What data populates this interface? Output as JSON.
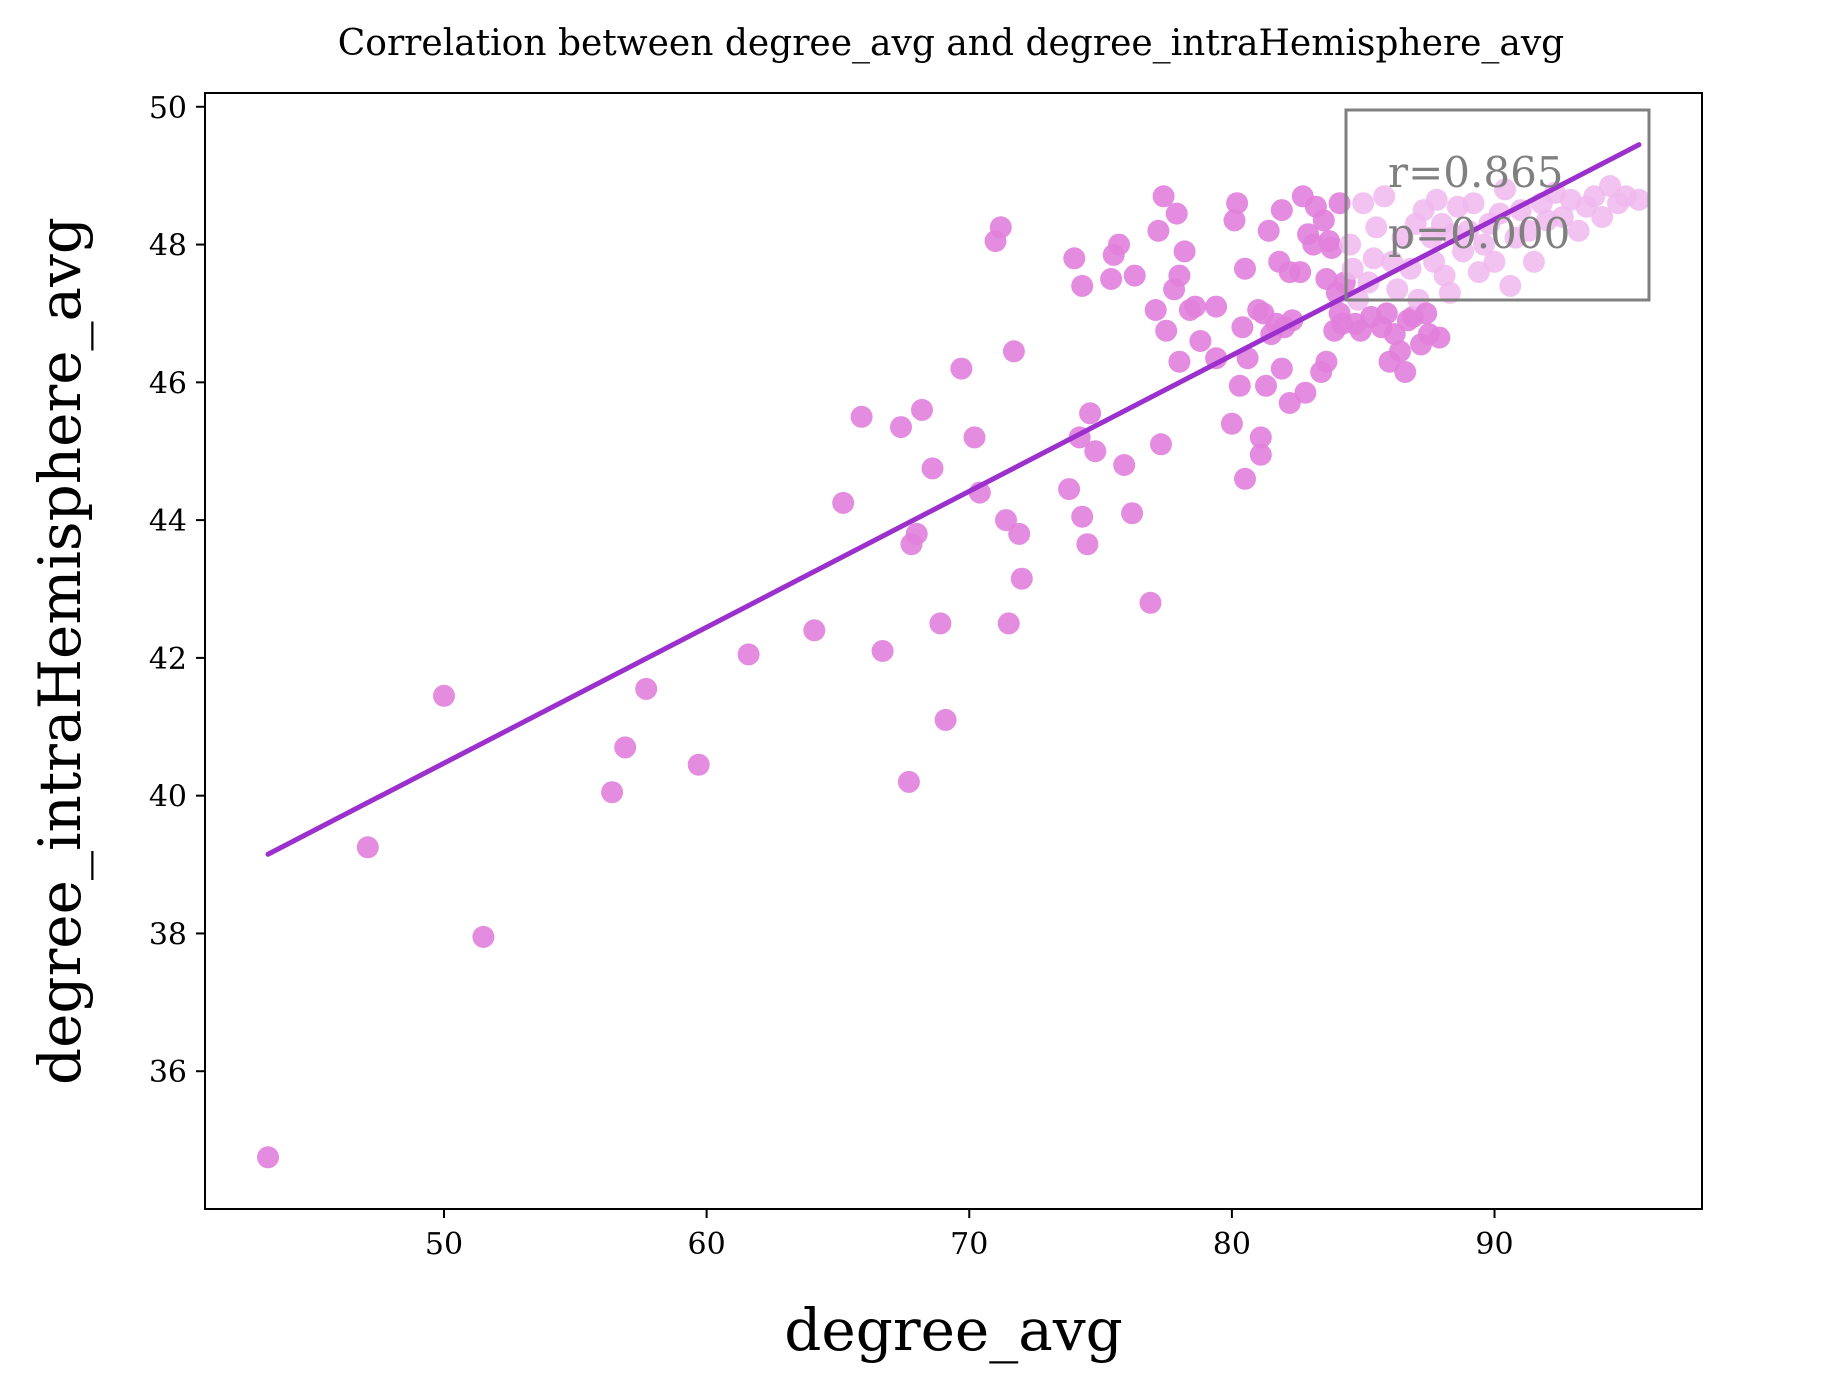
{
  "chart_data": {
    "type": "scatter",
    "title": "Correlation between degree_avg and degree_intraHemisphere_avg",
    "xlabel": "degree_avg",
    "ylabel": "degree_intraHemisphere_avg",
    "xlim": [
      40.9,
      97.9
    ],
    "ylim": [
      34.0,
      50.2
    ],
    "xticks": [
      50,
      60,
      70,
      80,
      90
    ],
    "yticks": [
      36,
      38,
      40,
      42,
      44,
      46,
      48,
      50
    ],
    "grid": false,
    "annotation": {
      "r_text": "r=0.865",
      "p_text": "p=0.000",
      "placement": "top-right"
    },
    "colors": {
      "points": "#e17fdc",
      "points_light": "#f0b8ee",
      "line": "#9b30cc",
      "annotation": "#808080"
    },
    "regression_line": {
      "x": [
        43.3,
        95.5
      ],
      "y": [
        39.15,
        49.45
      ]
    },
    "points": [
      [
        43.3,
        34.75
      ],
      [
        47.1,
        39.25
      ],
      [
        50.0,
        41.45
      ],
      [
        51.5,
        37.95
      ],
      [
        56.4,
        40.05
      ],
      [
        56.9,
        40.7
      ],
      [
        57.7,
        41.55
      ],
      [
        59.7,
        40.45
      ],
      [
        61.6,
        42.05
      ],
      [
        64.1,
        42.4
      ],
      [
        65.2,
        44.25
      ],
      [
        65.9,
        45.5
      ],
      [
        66.7,
        42.1
      ],
      [
        67.4,
        45.35
      ],
      [
        67.7,
        40.2
      ],
      [
        67.8,
        43.65
      ],
      [
        68.0,
        43.8
      ],
      [
        68.2,
        45.6
      ],
      [
        68.6,
        44.75
      ],
      [
        68.9,
        42.5
      ],
      [
        69.1,
        41.1
      ],
      [
        69.7,
        46.2
      ],
      [
        70.2,
        45.2
      ],
      [
        70.4,
        44.4
      ],
      [
        71.0,
        48.05
      ],
      [
        71.2,
        48.25
      ],
      [
        71.4,
        44.0
      ],
      [
        71.5,
        42.5
      ],
      [
        71.7,
        46.45
      ],
      [
        71.9,
        43.8
      ],
      [
        72.0,
        43.15
      ],
      [
        73.8,
        44.45
      ],
      [
        74.0,
        47.8
      ],
      [
        74.2,
        45.2
      ],
      [
        74.3,
        47.4
      ],
      [
        74.3,
        44.05
      ],
      [
        74.5,
        43.65
      ],
      [
        74.6,
        45.55
      ],
      [
        74.8,
        45.0
      ],
      [
        75.4,
        47.5
      ],
      [
        75.5,
        47.85
      ],
      [
        75.7,
        48.0
      ],
      [
        75.9,
        44.8
      ],
      [
        76.2,
        44.1
      ],
      [
        76.3,
        47.55
      ],
      [
        76.9,
        42.8
      ],
      [
        77.1,
        47.05
      ],
      [
        77.2,
        48.2
      ],
      [
        77.3,
        45.1
      ],
      [
        77.4,
        48.7
      ],
      [
        77.5,
        46.75
      ],
      [
        77.8,
        47.35
      ],
      [
        77.9,
        48.45
      ],
      [
        78.0,
        46.3
      ],
      [
        78.0,
        47.55
      ],
      [
        78.2,
        47.9
      ],
      [
        78.4,
        47.05
      ],
      [
        78.6,
        47.1
      ],
      [
        78.8,
        46.6
      ],
      [
        79.4,
        46.35
      ],
      [
        79.4,
        47.1
      ],
      [
        80.0,
        45.4
      ],
      [
        80.1,
        48.35
      ],
      [
        80.2,
        48.6
      ],
      [
        80.3,
        45.95
      ],
      [
        80.4,
        46.8
      ],
      [
        80.5,
        44.6
      ],
      [
        80.5,
        47.65
      ],
      [
        80.6,
        46.35
      ],
      [
        81.0,
        47.05
      ],
      [
        81.1,
        44.95
      ],
      [
        81.1,
        45.2
      ],
      [
        81.2,
        47.0
      ],
      [
        81.3,
        45.95
      ],
      [
        81.4,
        48.2
      ],
      [
        81.5,
        46.7
      ],
      [
        81.7,
        46.85
      ],
      [
        81.8,
        47.75
      ],
      [
        81.9,
        46.2
      ],
      [
        81.9,
        48.5
      ],
      [
        82.0,
        46.8
      ],
      [
        82.2,
        47.6
      ],
      [
        82.2,
        45.7
      ],
      [
        82.3,
        46.9
      ],
      [
        82.6,
        47.6
      ],
      [
        82.7,
        48.7
      ],
      [
        82.8,
        45.85
      ],
      [
        82.9,
        48.15
      ],
      [
        83.1,
        48.0
      ],
      [
        83.2,
        48.55
      ],
      [
        83.4,
        46.15
      ],
      [
        83.5,
        48.35
      ],
      [
        83.6,
        47.5
      ],
      [
        83.6,
        46.3
      ],
      [
        83.7,
        48.05
      ],
      [
        83.8,
        47.95
      ],
      [
        83.9,
        46.75
      ],
      [
        84.0,
        47.3
      ],
      [
        84.1,
        47.0
      ],
      [
        84.1,
        48.6
      ],
      [
        84.2,
        46.85
      ],
      [
        84.3,
        47.45
      ],
      [
        84.5,
        48.0
      ],
      [
        84.6,
        47.65
      ],
      [
        84.7,
        46.85
      ],
      [
        84.8,
        47.2
      ],
      [
        84.9,
        46.75
      ],
      [
        85.0,
        48.6
      ],
      [
        85.2,
        47.45
      ],
      [
        85.3,
        46.95
      ],
      [
        85.4,
        47.8
      ],
      [
        85.5,
        48.25
      ],
      [
        85.7,
        46.8
      ],
      [
        85.8,
        48.7
      ],
      [
        85.9,
        47.0
      ],
      [
        86.0,
        46.3
      ],
      [
        86.1,
        47.75
      ],
      [
        86.2,
        46.7
      ],
      [
        86.3,
        47.35
      ],
      [
        86.4,
        46.45
      ],
      [
        86.5,
        48.1
      ],
      [
        86.6,
        46.15
      ],
      [
        86.7,
        46.9
      ],
      [
        86.8,
        47.65
      ],
      [
        86.9,
        46.95
      ],
      [
        87.0,
        48.3
      ],
      [
        87.1,
        47.2
      ],
      [
        87.2,
        46.55
      ],
      [
        87.3,
        48.5
      ],
      [
        87.4,
        47.0
      ],
      [
        87.5,
        46.7
      ],
      [
        87.6,
        48.1
      ],
      [
        87.7,
        47.75
      ],
      [
        87.8,
        48.65
      ],
      [
        87.9,
        46.65
      ],
      [
        88.0,
        48.3
      ],
      [
        88.1,
        47.55
      ],
      [
        88.3,
        47.3
      ],
      [
        88.4,
        48.15
      ],
      [
        88.6,
        48.55
      ],
      [
        88.8,
        47.9
      ],
      [
        89.0,
        48.2
      ],
      [
        89.2,
        48.6
      ],
      [
        89.4,
        47.6
      ],
      [
        89.6,
        48.0
      ],
      [
        89.8,
        48.3
      ],
      [
        90.0,
        47.75
      ],
      [
        90.2,
        48.45
      ],
      [
        90.4,
        48.8
      ],
      [
        90.6,
        47.4
      ],
      [
        90.8,
        48.1
      ],
      [
        91.0,
        48.5
      ],
      [
        91.3,
        48.2
      ],
      [
        91.5,
        47.75
      ],
      [
        91.8,
        48.6
      ],
      [
        92.0,
        48.35
      ],
      [
        92.3,
        48.75
      ],
      [
        92.6,
        48.4
      ],
      [
        92.9,
        48.65
      ],
      [
        93.2,
        48.2
      ],
      [
        93.5,
        48.55
      ],
      [
        93.8,
        48.7
      ],
      [
        94.1,
        48.4
      ],
      [
        94.4,
        48.85
      ],
      [
        94.7,
        48.6
      ],
      [
        95.0,
        48.7
      ],
      [
        95.5,
        48.65
      ]
    ]
  }
}
